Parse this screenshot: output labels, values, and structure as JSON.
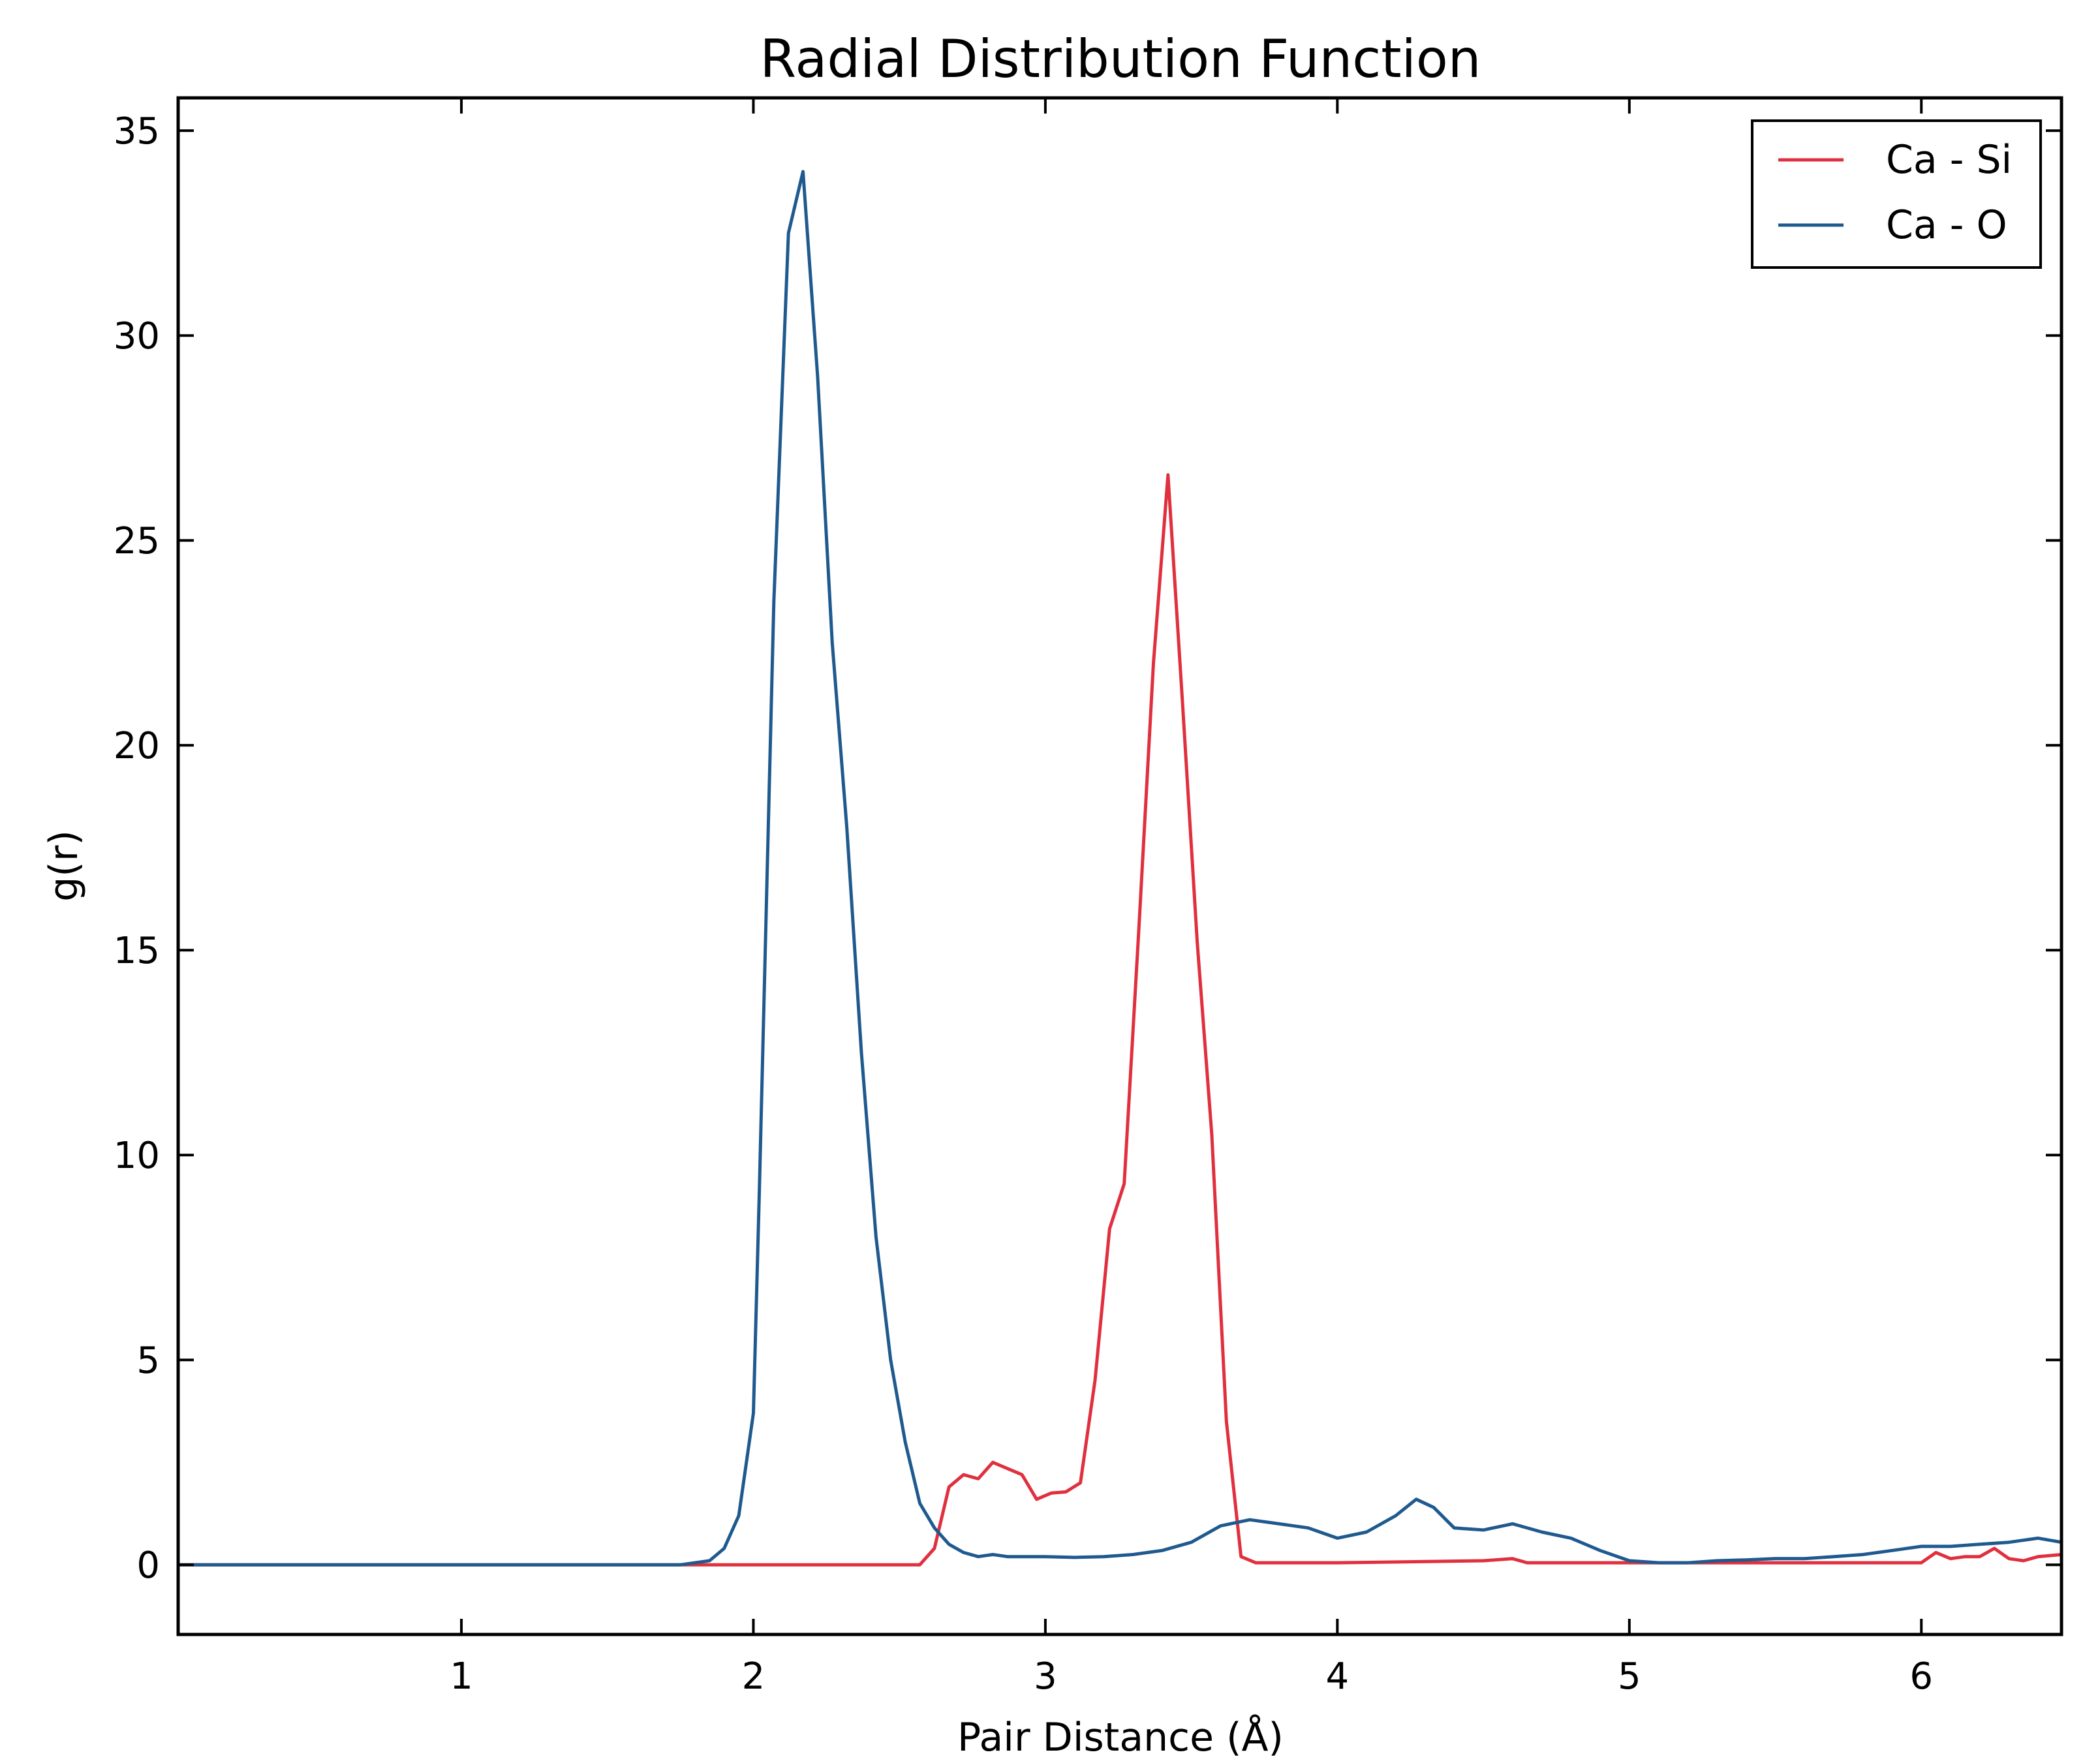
{
  "chart_data": {
    "type": "line",
    "title": "Radial Distribution Function",
    "xlabel": "Pair Distance (Å)",
    "ylabel": "g(r)",
    "xlim": [
      0.03,
      6.48
    ],
    "ylim": [
      -1.7,
      35.8
    ],
    "x_ticks": [
      1,
      2,
      3,
      4,
      5,
      6
    ],
    "x_tick_labels": [
      "1",
      "2",
      "3",
      "4",
      "5",
      "6"
    ],
    "y_ticks": [
      0,
      5,
      10,
      15,
      20,
      25,
      30,
      35
    ],
    "y_tick_labels": [
      "0",
      "5",
      "10",
      "15",
      "20",
      "25",
      "30",
      "35"
    ],
    "grid": false,
    "legend_position": "top-right",
    "series": [
      {
        "name": "Ca - Si",
        "color": "#e0303e",
        "x": [
          0.03,
          1.0,
          2.0,
          2.57,
          2.62,
          2.67,
          2.72,
          2.77,
          2.82,
          2.87,
          2.92,
          2.97,
          3.02,
          3.07,
          3.12,
          3.17,
          3.22,
          3.27,
          3.32,
          3.37,
          3.42,
          3.47,
          3.52,
          3.57,
          3.62,
          3.67,
          3.72,
          4.0,
          4.5,
          4.6,
          4.65,
          5.0,
          5.5,
          6.0,
          6.05,
          6.1,
          6.15,
          6.2,
          6.25,
          6.3,
          6.35,
          6.4,
          6.48
        ],
        "y": [
          0,
          0,
          0,
          0,
          0.4,
          1.9,
          2.2,
          2.1,
          2.5,
          2.35,
          2.2,
          1.6,
          1.75,
          1.78,
          2.0,
          4.5,
          8.2,
          9.3,
          15.5,
          22.0,
          26.6,
          21.0,
          15.2,
          10.5,
          3.5,
          0.2,
          0.05,
          0.05,
          0.1,
          0.15,
          0.05,
          0.05,
          0.05,
          0.05,
          0.3,
          0.15,
          0.2,
          0.2,
          0.4,
          0.15,
          0.1,
          0.2,
          0.25
        ]
      },
      {
        "name": "Ca - O",
        "color": "#1f5a8f",
        "x": [
          0.03,
          1.0,
          1.75,
          1.85,
          1.9,
          1.95,
          2.0,
          2.02,
          2.07,
          2.12,
          2.17,
          2.22,
          2.27,
          2.32,
          2.37,
          2.42,
          2.47,
          2.52,
          2.57,
          2.62,
          2.67,
          2.72,
          2.77,
          2.82,
          2.87,
          2.92,
          3.0,
          3.1,
          3.2,
          3.3,
          3.4,
          3.5,
          3.6,
          3.7,
          3.8,
          3.9,
          4.0,
          4.1,
          4.2,
          4.27,
          4.33,
          4.4,
          4.5,
          4.6,
          4.7,
          4.8,
          4.9,
          5.0,
          5.1,
          5.2,
          5.3,
          5.4,
          5.5,
          5.6,
          5.7,
          5.8,
          5.9,
          6.0,
          6.1,
          6.2,
          6.3,
          6.4,
          6.48
        ],
        "y": [
          0,
          0,
          0,
          0.1,
          0.4,
          1.2,
          3.7,
          9.0,
          23.5,
          32.5,
          34.0,
          29.0,
          22.5,
          18.0,
          12.5,
          8.0,
          5.0,
          3.0,
          1.5,
          0.9,
          0.5,
          0.3,
          0.2,
          0.25,
          0.2,
          0.2,
          0.2,
          0.18,
          0.2,
          0.25,
          0.35,
          0.55,
          0.95,
          1.1,
          1.0,
          0.9,
          0.65,
          0.8,
          1.2,
          1.6,
          1.4,
          0.9,
          0.85,
          1.0,
          0.8,
          0.65,
          0.35,
          0.1,
          0.05,
          0.05,
          0.1,
          0.12,
          0.15,
          0.15,
          0.2,
          0.25,
          0.35,
          0.45,
          0.45,
          0.5,
          0.55,
          0.65,
          0.55
        ]
      }
    ]
  }
}
